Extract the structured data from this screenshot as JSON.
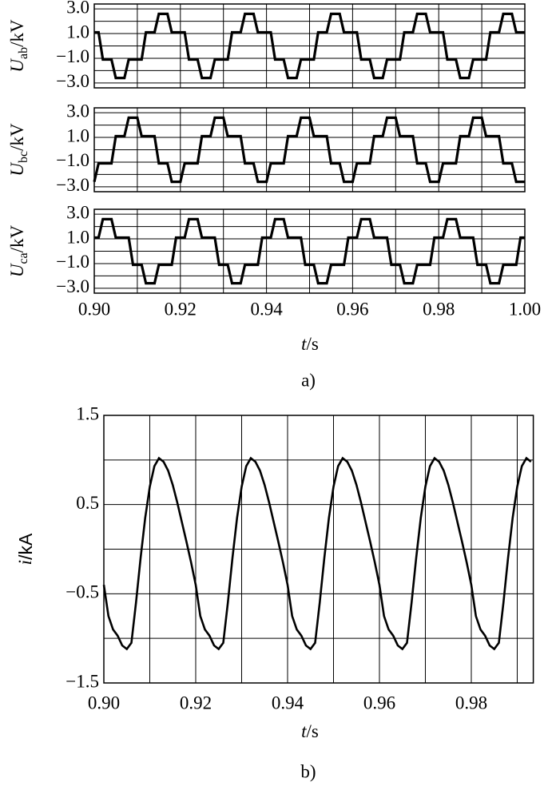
{
  "chart_data": [
    {
      "type": "line",
      "ylabel": {
        "symbol": "U",
        "subscript": "ab",
        "unit": "/kV"
      },
      "xlim": [
        0.9,
        1.0
      ],
      "ylim": [
        -3.4,
        3.4
      ],
      "yticks": [
        {
          "value": 3,
          "label": "3.0"
        },
        {
          "value": 1,
          "label": "1.0"
        },
        {
          "value": -1,
          "label": "−1.0"
        },
        {
          "value": -3,
          "label": "−3.0"
        }
      ],
      "ygrid": [
        2,
        0,
        -2
      ],
      "xgrid": [
        0.91,
        0.92,
        0.93,
        0.94,
        0.95,
        0.96,
        0.97,
        0.98,
        0.99
      ],
      "color": "#000000",
      "x": [
        0.9,
        0.901,
        0.902,
        0.903,
        0.904,
        0.905,
        0.906,
        0.907,
        0.908,
        0.909,
        0.91,
        0.911,
        0.912,
        0.913,
        0.914,
        0.915,
        0.916,
        0.917,
        0.918,
        0.919,
        0.92,
        0.921,
        0.922,
        0.923,
        0.924,
        0.925,
        0.926,
        0.927,
        0.928,
        0.929,
        0.93,
        0.931,
        0.932,
        0.933,
        0.934,
        0.935,
        0.936,
        0.937,
        0.938,
        0.939,
        0.94,
        0.941,
        0.942,
        0.943,
        0.944,
        0.945,
        0.946,
        0.947,
        0.948,
        0.949,
        0.95,
        0.951,
        0.952,
        0.953,
        0.954,
        0.955,
        0.956,
        0.957,
        0.958,
        0.959,
        0.96,
        0.961,
        0.962,
        0.963,
        0.964,
        0.965,
        0.966,
        0.967,
        0.968,
        0.969,
        0.97,
        0.971,
        0.972,
        0.973,
        0.974,
        0.975,
        0.976,
        0.977,
        0.978,
        0.979,
        0.98,
        0.981,
        0.982,
        0.983,
        0.984,
        0.985,
        0.986,
        0.987,
        0.988,
        0.989,
        0.99,
        0.991,
        0.992,
        0.993,
        0.994,
        0.995,
        0.996,
        0.997,
        0.998,
        0.999,
        1.0
      ],
      "values": [
        1.1,
        1.1,
        -1.1,
        -1.1,
        -1.1,
        -2.6,
        -2.6,
        -2.6,
        -1.1,
        -1.1,
        -1.1,
        -1.1,
        1.1,
        1.1,
        1.1,
        2.6,
        2.6,
        2.6,
        1.1,
        1.1,
        1.1,
        1.1,
        -1.1,
        -1.1,
        -1.1,
        -2.6,
        -2.6,
        -2.6,
        -1.1,
        -1.1,
        -1.1,
        -1.1,
        1.1,
        1.1,
        1.1,
        2.6,
        2.6,
        2.6,
        1.1,
        1.1,
        1.1,
        1.1,
        -1.1,
        -1.1,
        -1.1,
        -2.6,
        -2.6,
        -2.6,
        -1.1,
        -1.1,
        -1.1,
        -1.1,
        1.1,
        1.1,
        1.1,
        2.6,
        2.6,
        2.6,
        1.1,
        1.1,
        1.1,
        1.1,
        -1.1,
        -1.1,
        -1.1,
        -2.6,
        -2.6,
        -2.6,
        -1.1,
        -1.1,
        -1.1,
        -1.1,
        1.1,
        1.1,
        1.1,
        2.6,
        2.6,
        2.6,
        1.1,
        1.1,
        1.1,
        1.1,
        -1.1,
        -1.1,
        -1.1,
        -2.6,
        -2.6,
        -2.6,
        -1.1,
        -1.1,
        -1.1,
        -1.1,
        1.1,
        1.1,
        1.1,
        2.6,
        2.6,
        2.6,
        1.1,
        1.1,
        1.1
      ]
    },
    {
      "type": "line",
      "ylabel": {
        "symbol": "U",
        "subscript": "bc",
        "unit": "/kV"
      },
      "xlim": [
        0.9,
        1.0
      ],
      "ylim": [
        -3.4,
        3.4
      ],
      "yticks": [
        {
          "value": 3,
          "label": "3.0"
        },
        {
          "value": 1,
          "label": "1.0"
        },
        {
          "value": -1,
          "label": "−1.0"
        },
        {
          "value": -3,
          "label": "−3.0"
        }
      ],
      "ygrid": [
        2,
        0,
        -2
      ],
      "xgrid": [
        0.91,
        0.92,
        0.93,
        0.94,
        0.95,
        0.96,
        0.97,
        0.98,
        0.99
      ],
      "color": "#000000",
      "x": [
        0.9,
        0.901,
        0.902,
        0.903,
        0.904,
        0.905,
        0.906,
        0.907,
        0.908,
        0.909,
        0.91,
        0.911,
        0.912,
        0.913,
        0.914,
        0.915,
        0.916,
        0.917,
        0.918,
        0.919,
        0.92,
        0.921,
        0.922,
        0.923,
        0.924,
        0.925,
        0.926,
        0.927,
        0.928,
        0.929,
        0.93,
        0.931,
        0.932,
        0.933,
        0.934,
        0.935,
        0.936,
        0.937,
        0.938,
        0.939,
        0.94,
        0.941,
        0.942,
        0.943,
        0.944,
        0.945,
        0.946,
        0.947,
        0.948,
        0.949,
        0.95,
        0.951,
        0.952,
        0.953,
        0.954,
        0.955,
        0.956,
        0.957,
        0.958,
        0.959,
        0.96,
        0.961,
        0.962,
        0.963,
        0.964,
        0.965,
        0.966,
        0.967,
        0.968,
        0.969,
        0.97,
        0.971,
        0.972,
        0.973,
        0.974,
        0.975,
        0.976,
        0.977,
        0.978,
        0.979,
        0.98,
        0.981,
        0.982,
        0.983,
        0.984,
        0.985,
        0.986,
        0.987,
        0.988,
        0.989,
        0.99,
        0.991,
        0.992,
        0.993,
        0.994,
        0.995,
        0.996,
        0.997,
        0.998,
        0.999,
        1.0
      ],
      "values": [
        -2.6,
        -1.1,
        -1.1,
        -1.1,
        -1.1,
        1.1,
        1.1,
        1.1,
        2.6,
        2.6,
        2.6,
        1.1,
        1.1,
        1.1,
        1.1,
        -1.1,
        -1.1,
        -1.1,
        -2.6,
        -2.6,
        -2.6,
        -1.1,
        -1.1,
        -1.1,
        -1.1,
        1.1,
        1.1,
        1.1,
        2.6,
        2.6,
        2.6,
        1.1,
        1.1,
        1.1,
        1.1,
        -1.1,
        -1.1,
        -1.1,
        -2.6,
        -2.6,
        -2.6,
        -1.1,
        -1.1,
        -1.1,
        -1.1,
        1.1,
        1.1,
        1.1,
        2.6,
        2.6,
        2.6,
        1.1,
        1.1,
        1.1,
        1.1,
        -1.1,
        -1.1,
        -1.1,
        -2.6,
        -2.6,
        -2.6,
        -1.1,
        -1.1,
        -1.1,
        -1.1,
        1.1,
        1.1,
        1.1,
        2.6,
        2.6,
        2.6,
        1.1,
        1.1,
        1.1,
        1.1,
        -1.1,
        -1.1,
        -1.1,
        -2.6,
        -2.6,
        -2.6,
        -1.1,
        -1.1,
        -1.1,
        -1.1,
        1.1,
        1.1,
        1.1,
        2.6,
        2.6,
        2.6,
        1.1,
        1.1,
        1.1,
        1.1,
        -1.1,
        -1.1,
        -1.1,
        -2.6,
        -2.6,
        -2.6
      ]
    },
    {
      "type": "line",
      "ylabel": {
        "symbol": "U",
        "subscript": "ca",
        "unit": "/kV"
      },
      "xlabel": {
        "symbol": "t",
        "unit": "/s"
      },
      "caption": "a)",
      "xlim": [
        0.9,
        1.0
      ],
      "ylim": [
        -3.4,
        3.4
      ],
      "xticks": [
        {
          "value": 0.9,
          "label": "0.90"
        },
        0.92,
        0.94,
        0.96,
        0.98,
        {
          "value": 1,
          "label": "1.00"
        }
      ],
      "yticks": [
        {
          "value": 3,
          "label": "3.0"
        },
        {
          "value": 1,
          "label": "1.0"
        },
        {
          "value": -1,
          "label": "−1.0"
        },
        {
          "value": -3,
          "label": "−3.0"
        }
      ],
      "ygrid": [
        2,
        0,
        -2
      ],
      "xgrid": [
        0.91,
        0.93,
        0.95,
        0.97,
        0.99
      ],
      "color": "#000000",
      "x": [
        0.9,
        0.901,
        0.902,
        0.903,
        0.904,
        0.905,
        0.906,
        0.907,
        0.908,
        0.909,
        0.91,
        0.911,
        0.912,
        0.913,
        0.914,
        0.915,
        0.916,
        0.917,
        0.918,
        0.919,
        0.92,
        0.921,
        0.922,
        0.923,
        0.924,
        0.925,
        0.926,
        0.927,
        0.928,
        0.929,
        0.93,
        0.931,
        0.932,
        0.933,
        0.934,
        0.935,
        0.936,
        0.937,
        0.938,
        0.939,
        0.94,
        0.941,
        0.942,
        0.943,
        0.944,
        0.945,
        0.946,
        0.947,
        0.948,
        0.949,
        0.95,
        0.951,
        0.952,
        0.953,
        0.954,
        0.955,
        0.956,
        0.957,
        0.958,
        0.959,
        0.96,
        0.961,
        0.962,
        0.963,
        0.964,
        0.965,
        0.966,
        0.967,
        0.968,
        0.969,
        0.97,
        0.971,
        0.972,
        0.973,
        0.974,
        0.975,
        0.976,
        0.977,
        0.978,
        0.979,
        0.98,
        0.981,
        0.982,
        0.983,
        0.984,
        0.985,
        0.986,
        0.987,
        0.988,
        0.989,
        0.99,
        0.991,
        0.992,
        0.993,
        0.994,
        0.995,
        0.996,
        0.997,
        0.998,
        0.999,
        1.0
      ],
      "values": [
        1.1,
        1.1,
        2.6,
        2.6,
        2.6,
        1.1,
        1.1,
        1.1,
        1.1,
        -1.1,
        -1.1,
        -1.1,
        -2.6,
        -2.6,
        -2.6,
        -1.1,
        -1.1,
        -1.1,
        -1.1,
        1.1,
        1.1,
        1.1,
        2.6,
        2.6,
        2.6,
        1.1,
        1.1,
        1.1,
        1.1,
        -1.1,
        -1.1,
        -1.1,
        -2.6,
        -2.6,
        -2.6,
        -1.1,
        -1.1,
        -1.1,
        -1.1,
        1.1,
        1.1,
        1.1,
        2.6,
        2.6,
        2.6,
        1.1,
        1.1,
        1.1,
        1.1,
        -1.1,
        -1.1,
        -1.1,
        -2.6,
        -2.6,
        -2.6,
        -1.1,
        -1.1,
        -1.1,
        -1.1,
        1.1,
        1.1,
        1.1,
        2.6,
        2.6,
        2.6,
        1.1,
        1.1,
        1.1,
        1.1,
        -1.1,
        -1.1,
        -1.1,
        -2.6,
        -2.6,
        -2.6,
        -1.1,
        -1.1,
        -1.1,
        -1.1,
        1.1,
        1.1,
        1.1,
        2.6,
        2.6,
        2.6,
        1.1,
        1.1,
        1.1,
        1.1,
        -1.1,
        -1.1,
        -1.1,
        -2.6,
        -2.6,
        -2.6,
        -1.1,
        -1.1,
        -1.1,
        -1.1,
        1.1,
        1.1
      ]
    },
    {
      "type": "line",
      "ylabel": {
        "symbol": "i",
        "unit": "/kA"
      },
      "xlabel": {
        "symbol": "t",
        "unit": "/s"
      },
      "caption": "b)",
      "xlim": [
        0.9,
        0.9935
      ],
      "ylim": [
        -1.5,
        1.5
      ],
      "xticks": [
        {
          "value": 0.9,
          "label": "0.90"
        },
        0.92,
        0.94,
        0.96,
        0.98
      ],
      "yticks": [
        1.5,
        0.5,
        {
          "value": -0.5,
          "label": "−0.5"
        },
        {
          "value": -1.5,
          "label": "−1.5"
        }
      ],
      "ygrid": [
        1,
        0,
        -1
      ],
      "xgrid": [
        0.91,
        0.93,
        0.95,
        0.97,
        0.99
      ],
      "color": "#000000",
      "x": [
        0.9,
        0.901,
        0.902,
        0.903,
        0.904,
        0.905,
        0.906,
        0.907,
        0.908,
        0.909,
        0.91,
        0.911,
        0.912,
        0.913,
        0.914,
        0.915,
        0.916,
        0.917,
        0.918,
        0.919,
        0.92,
        0.921,
        0.922,
        0.923,
        0.924,
        0.925,
        0.926,
        0.927,
        0.928,
        0.929,
        0.93,
        0.931,
        0.932,
        0.933,
        0.934,
        0.935,
        0.936,
        0.937,
        0.938,
        0.939,
        0.94,
        0.941,
        0.942,
        0.943,
        0.944,
        0.945,
        0.946,
        0.947,
        0.948,
        0.949,
        0.95,
        0.951,
        0.952,
        0.953,
        0.954,
        0.955,
        0.956,
        0.957,
        0.958,
        0.959,
        0.96,
        0.961,
        0.962,
        0.963,
        0.964,
        0.965,
        0.966,
        0.967,
        0.968,
        0.969,
        0.97,
        0.971,
        0.972,
        0.973,
        0.974,
        0.975,
        0.976,
        0.977,
        0.978,
        0.979,
        0.98,
        0.981,
        0.982,
        0.983,
        0.984,
        0.985,
        0.986,
        0.987,
        0.988,
        0.989,
        0.99,
        0.991,
        0.992,
        0.993
      ],
      "values": [
        -0.4,
        -0.75,
        -0.9,
        -0.97,
        -1.08,
        -1.12,
        -1.05,
        -0.6,
        -0.1,
        0.35,
        0.7,
        0.93,
        1.02,
        0.98,
        0.88,
        0.72,
        0.52,
        0.3,
        0.08,
        -0.15,
        -0.4,
        -0.75,
        -0.9,
        -0.97,
        -1.08,
        -1.12,
        -1.05,
        -0.6,
        -0.1,
        0.35,
        0.7,
        0.93,
        1.02,
        0.98,
        0.88,
        0.72,
        0.52,
        0.3,
        0.08,
        -0.15,
        -0.4,
        -0.75,
        -0.9,
        -0.97,
        -1.08,
        -1.12,
        -1.05,
        -0.6,
        -0.1,
        0.35,
        0.7,
        0.93,
        1.02,
        0.98,
        0.88,
        0.72,
        0.52,
        0.3,
        0.08,
        -0.15,
        -0.4,
        -0.75,
        -0.9,
        -0.97,
        -1.08,
        -1.12,
        -1.05,
        -0.6,
        -0.1,
        0.35,
        0.7,
        0.93,
        1.02,
        0.98,
        0.88,
        0.72,
        0.52,
        0.3,
        0.08,
        -0.15,
        -0.4,
        -0.75,
        -0.9,
        -0.97,
        -1.08,
        -1.12,
        -1.05,
        -0.6,
        -0.1,
        0.35,
        0.7,
        0.93,
        1.02,
        0.98
      ]
    }
  ]
}
